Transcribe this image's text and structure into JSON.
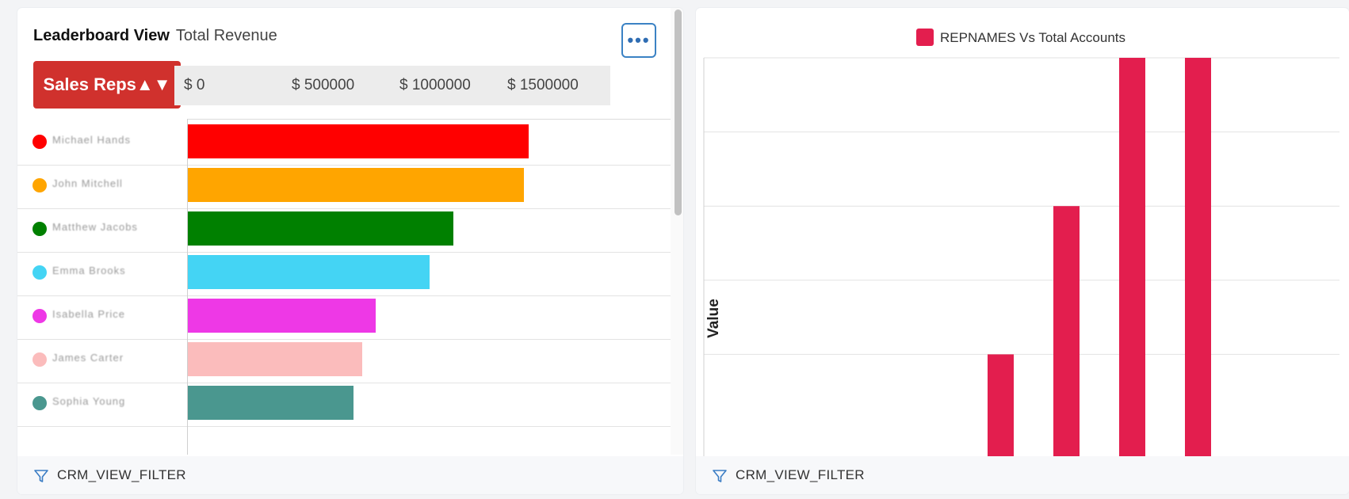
{
  "leaderboard": {
    "title": "Leaderboard View",
    "subtitle": "Total Revenue",
    "more_label": "•••",
    "sort_button_label": "Sales Reps▲▼",
    "scale_labels": [
      "$ 0",
      "$ 500000",
      "$ 1000000",
      "$ 1500000"
    ],
    "max_value": 2000000,
    "reps": [
      {
        "name": "Michael Hands",
        "color": "#ff0000",
        "value": 1580000
      },
      {
        "name": "John Mitchell",
        "color": "#ffa500",
        "value": 1560000
      },
      {
        "name": "Matthew Jacobs",
        "color": "#008000",
        "value": 1230000
      },
      {
        "name": "Emma Brooks",
        "color": "#44d4f4",
        "value": 1120000
      },
      {
        "name": "Isabella Price",
        "color": "#ee38e6",
        "value": 870000
      },
      {
        "name": "James Carter",
        "color": "#fbbcbc",
        "value": 810000
      },
      {
        "name": "Sophia Young",
        "color": "#4a978f",
        "value": 770000
      }
    ],
    "footer_label": "CRM_VIEW_FILTER"
  },
  "accounts_chart": {
    "footer_label": "CRM_VIEW_FILTER"
  },
  "chart_data": {
    "type": "bar",
    "legend": "REPNAMES Vs Total Accounts",
    "legend_position": "top",
    "xlabel": "",
    "ylabel": "Value",
    "ylim": [
      1.2,
      6
    ],
    "y_ticks": [
      2,
      3,
      4,
      5,
      6
    ],
    "grid": true,
    "series": [
      {
        "name": "REPNAMES Vs Total Accounts",
        "color": "#e31e4e",
        "values": [
          2,
          4,
          6,
          6
        ]
      }
    ]
  }
}
